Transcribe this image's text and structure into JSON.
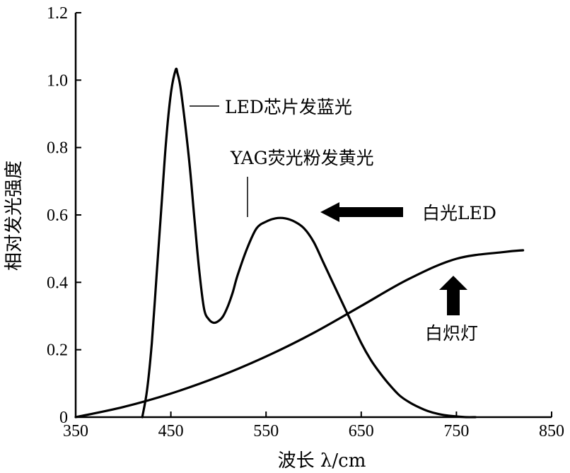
{
  "chart_data": {
    "type": "line",
    "xlabel": "波长 λ/cm",
    "ylabel": "相对发光强度",
    "xlim": [
      350,
      850
    ],
    "ylim": [
      0,
      1.2
    ],
    "xticks": [
      "350",
      "450",
      "550",
      "650",
      "750",
      "850"
    ],
    "yticks": [
      "0",
      "0.2",
      "0.4",
      "0.6",
      "0.8",
      "1.0",
      "1.2"
    ],
    "series": [
      {
        "name": "白光LED",
        "x": [
          420,
          425,
          430,
          435,
          440,
          445,
          450,
          455,
          457,
          460,
          465,
          470,
          475,
          480,
          485,
          490,
          495,
          500,
          505,
          510,
          515,
          520,
          530,
          540,
          550,
          560,
          570,
          580,
          590,
          600,
          610,
          620,
          630,
          640,
          650,
          660,
          670,
          680,
          690,
          700,
          710,
          720,
          730,
          740,
          750,
          760,
          770
        ],
        "y": [
          0.0,
          0.08,
          0.22,
          0.42,
          0.62,
          0.82,
          0.96,
          1.03,
          1.02,
          0.98,
          0.87,
          0.74,
          0.58,
          0.43,
          0.32,
          0.29,
          0.28,
          0.285,
          0.3,
          0.33,
          0.37,
          0.42,
          0.5,
          0.56,
          0.58,
          0.59,
          0.59,
          0.58,
          0.56,
          0.52,
          0.46,
          0.4,
          0.34,
          0.28,
          0.22,
          0.17,
          0.13,
          0.095,
          0.065,
          0.045,
          0.03,
          0.018,
          0.01,
          0.005,
          0.002,
          0.0,
          0.0
        ]
      },
      {
        "name": "白炽灯",
        "x": [
          350,
          400,
          450,
          500,
          550,
          600,
          650,
          700,
          750,
          800,
          820
        ],
        "y": [
          0.0,
          0.03,
          0.07,
          0.12,
          0.18,
          0.25,
          0.33,
          0.41,
          0.47,
          0.49,
          0.495
        ]
      }
    ],
    "annotations": [
      "LED芯片发蓝光",
      "YAG荧光粉发黄光",
      "白光LED",
      "白炽灯"
    ]
  }
}
